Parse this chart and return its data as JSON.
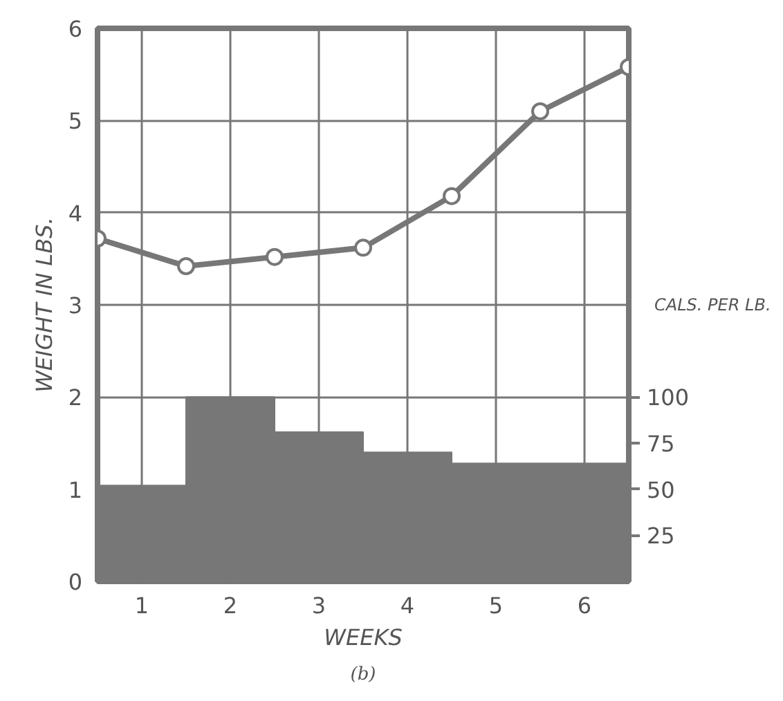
{
  "chart_data": {
    "type": "bar",
    "xlabel": "WEEKS",
    "ylabel": "WEIGHT IN LBS.",
    "y2label": "CALS. PER LB.",
    "annotations": [
      "(b)"
    ],
    "xlim": [
      0.5,
      6.5
    ],
    "xticks": [
      1,
      2,
      3,
      4,
      5,
      6
    ],
    "ylim": [
      0,
      6
    ],
    "yticks": [
      0,
      1,
      2,
      3,
      4,
      5,
      6
    ],
    "y2lim": [
      0,
      300
    ],
    "y2ticks": [
      25,
      50,
      75,
      100
    ],
    "grid": true,
    "series": [
      {
        "axis": "y2",
        "color": "#777777",
        "x": [
          1,
          2,
          3,
          4,
          5,
          6
        ],
        "values": [
          52,
          100,
          81,
          70,
          64,
          64
        ]
      },
      {
        "type": "line",
        "color": "#777777",
        "marker": "circle",
        "x": [
          0.5,
          1.5,
          2.5,
          3.5,
          4.5,
          5.5,
          6.5
        ],
        "values": [
          3.72,
          3.42,
          3.52,
          3.62,
          4.18,
          5.1,
          5.58
        ]
      }
    ]
  }
}
